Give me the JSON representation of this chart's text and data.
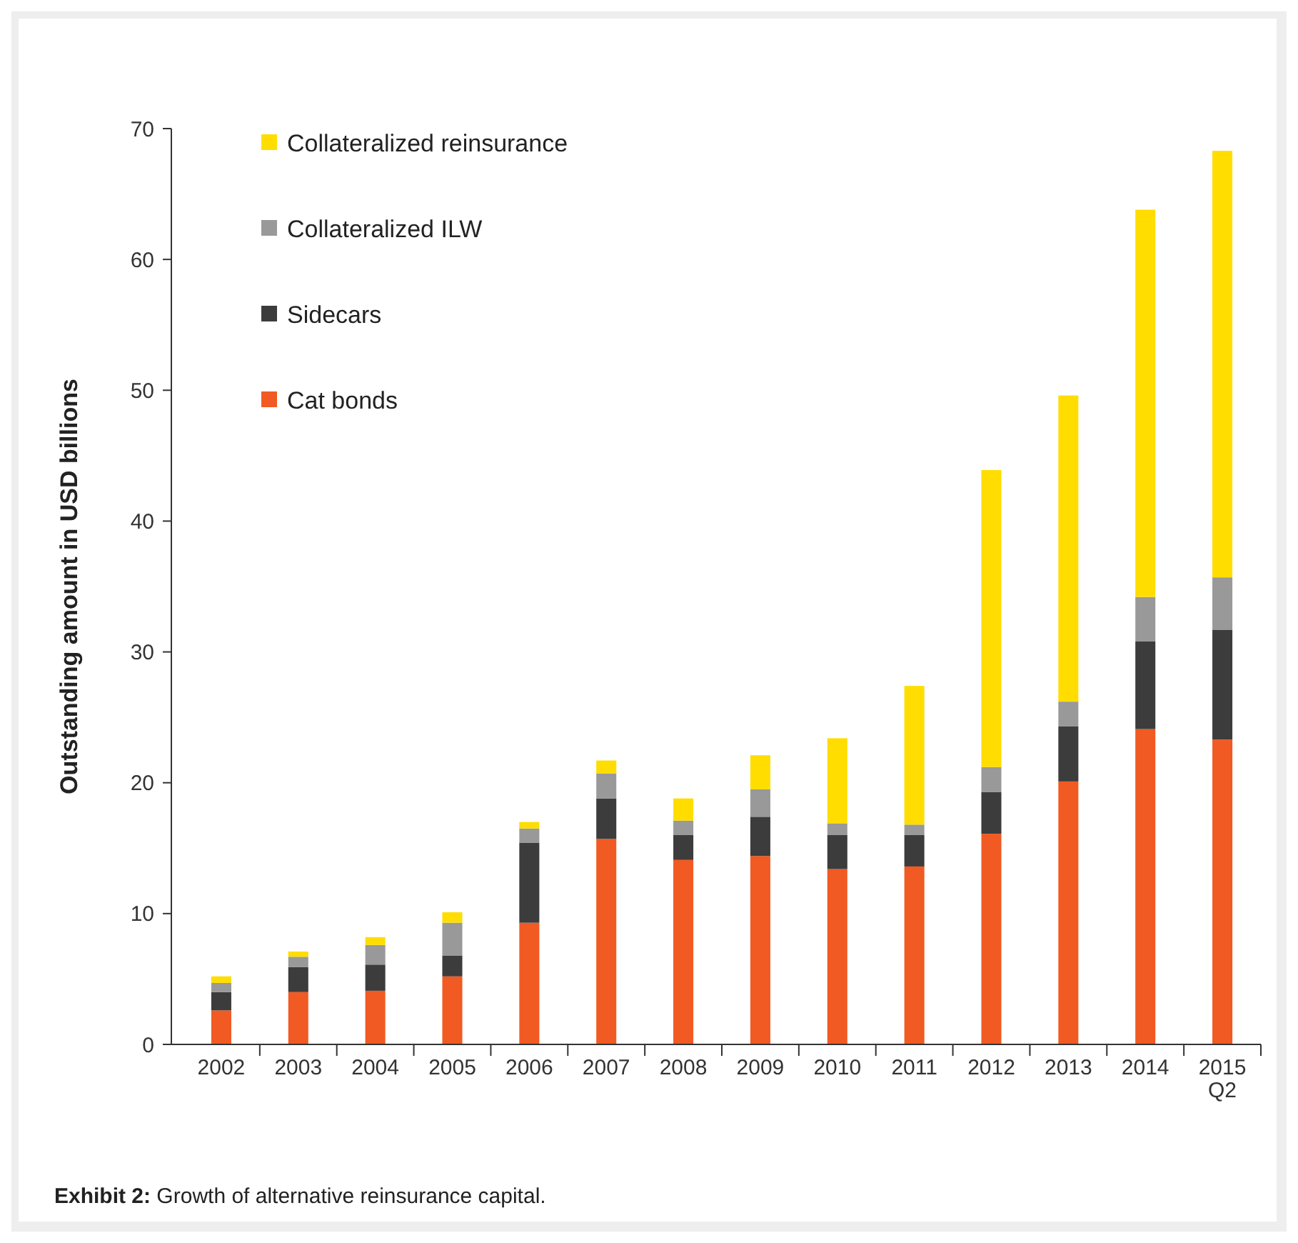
{
  "chart_data": {
    "type": "bar",
    "stacked": true,
    "ylabel": "Outstanding amount in USD billions",
    "categories": [
      "2002",
      "2003",
      "2004",
      "2005",
      "2006",
      "2007",
      "2008",
      "2009",
      "2010",
      "2011",
      "2012",
      "2013",
      "2014",
      "2015 Q2"
    ],
    "series": [
      {
        "name": "Cat bonds",
        "color": "#f15a22",
        "values": [
          2.6,
          4.0,
          4.1,
          5.2,
          9.3,
          15.7,
          14.1,
          14.4,
          13.4,
          13.6,
          16.1,
          20.1,
          24.1,
          23.3
        ]
      },
      {
        "name": "Sidecars",
        "color": "#3c3c3c",
        "values": [
          1.4,
          1.9,
          2.0,
          1.6,
          6.1,
          3.1,
          1.9,
          3.0,
          2.6,
          2.4,
          3.2,
          4.2,
          6.7,
          8.4
        ]
      },
      {
        "name": "Collateralized ILW",
        "color": "#999999",
        "values": [
          0.7,
          0.8,
          1.5,
          2.5,
          1.1,
          1.9,
          1.1,
          2.1,
          0.9,
          0.8,
          1.9,
          1.9,
          3.4,
          4.0
        ]
      },
      {
        "name": "Collateralized reinsurance",
        "color": "#ffdd00",
        "values": [
          0.5,
          0.4,
          0.6,
          0.8,
          0.5,
          1.0,
          1.7,
          2.6,
          6.5,
          10.6,
          22.7,
          23.4,
          29.6,
          32.6
        ]
      }
    ],
    "ylim": [
      0,
      70
    ],
    "yticks": [
      0,
      10,
      20,
      30,
      40,
      50,
      60,
      70
    ],
    "grid": false,
    "legend": "top left",
    "annotations": [
      "Exhibit 2: Growth of alternative reinsurance capital."
    ]
  }
}
